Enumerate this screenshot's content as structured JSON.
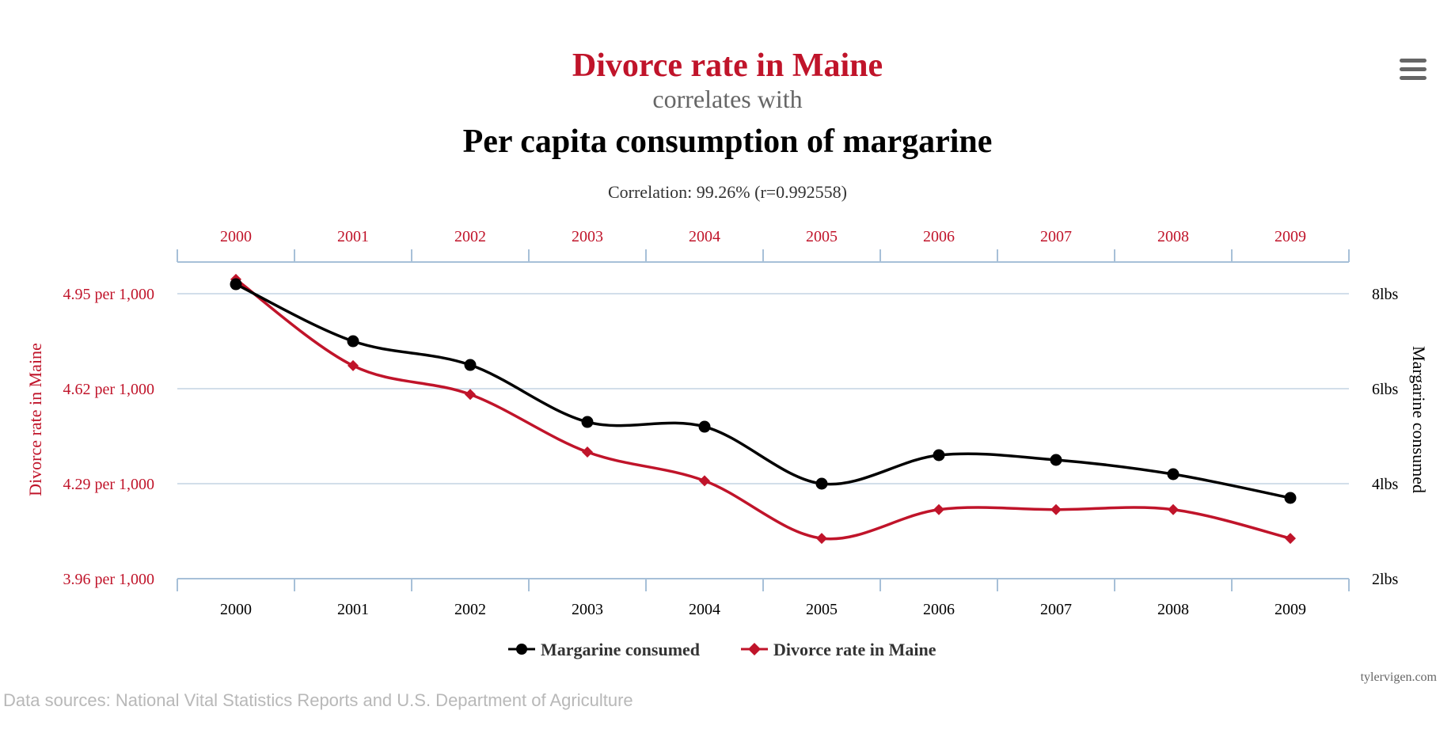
{
  "titles": {
    "title": "Divorce rate in Maine",
    "connector": "correlates with",
    "subtitle": "Per capita consumption of margarine",
    "correlation": "Correlation: 99.26% (r=0.992558)"
  },
  "credit": "tylervigen.com",
  "sources": "Data sources: National Vital Statistics Reports and U.S. Department of Agriculture",
  "menu_icon": "hamburger-menu-icon",
  "colors": {
    "red": "#c0142a",
    "black": "#000000",
    "gridline": "#c4d3e3",
    "axis": "#a7c0d8"
  },
  "chart_data": {
    "type": "line",
    "categories": [
      "2000",
      "2001",
      "2002",
      "2003",
      "2004",
      "2005",
      "2006",
      "2007",
      "2008",
      "2009"
    ],
    "series": [
      {
        "name": "Margarine consumed",
        "axis": "right",
        "color": "#000000",
        "marker": "circle",
        "values": [
          8.2,
          7.0,
          6.5,
          5.3,
          5.2,
          4.0,
          4.6,
          4.5,
          4.2,
          3.7
        ]
      },
      {
        "name": "Divorce rate in Maine",
        "axis": "left",
        "color": "#c0142a",
        "marker": "diamond",
        "values": [
          5.0,
          4.7,
          4.6,
          4.4,
          4.3,
          4.1,
          4.2,
          4.2,
          4.2,
          4.1
        ]
      }
    ],
    "left_axis": {
      "label": "Divorce rate in Maine",
      "range": [
        3.96,
        5.06
      ],
      "ticks": [
        {
          "v": 4.95,
          "label": "4.95 per 1,000"
        },
        {
          "v": 4.62,
          "label": "4.62 per 1,000"
        },
        {
          "v": 4.29,
          "label": "4.29 per 1,000"
        },
        {
          "v": 3.96,
          "label": "3.96 per 1,000"
        }
      ]
    },
    "right_axis": {
      "label": "Margarine consumed",
      "range": [
        2,
        8.667
      ],
      "ticks": [
        {
          "v": 8,
          "label": "8lbs"
        },
        {
          "v": 6,
          "label": "6lbs"
        },
        {
          "v": 4,
          "label": "4lbs"
        },
        {
          "v": 2,
          "label": "2lbs"
        }
      ]
    },
    "legend": "bottom-center"
  }
}
